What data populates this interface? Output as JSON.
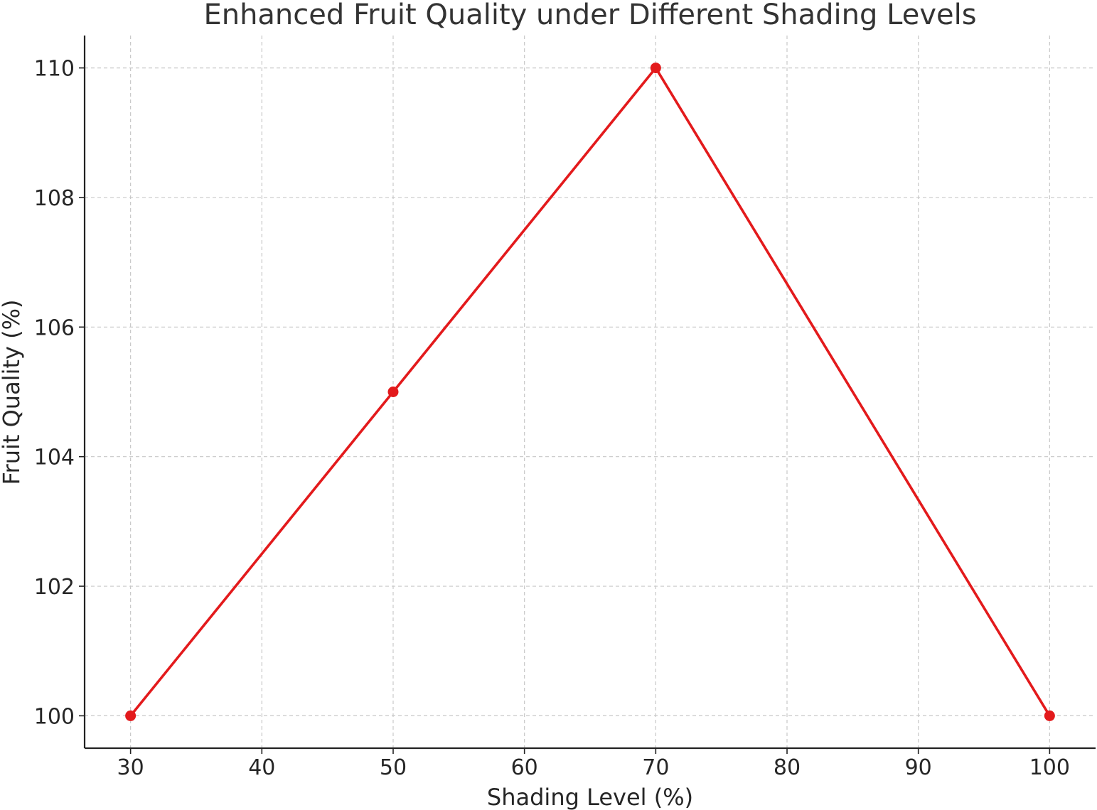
{
  "chart_data": {
    "type": "line",
    "title": "Enhanced Fruit Quality under Different Shading Levels",
    "xlabel": "Shading Level (%)",
    "ylabel": "Fruit Quality (%)",
    "x": [
      30,
      50,
      70,
      100
    ],
    "series": [
      {
        "values": [
          100,
          105,
          110,
          100
        ],
        "color": "#e31a1c",
        "marker": "circle"
      }
    ],
    "xlim": [
      26.5,
      103.5
    ],
    "ylim": [
      99.5,
      110.5
    ],
    "xticks": [
      30,
      40,
      50,
      60,
      70,
      80,
      90,
      100
    ],
    "yticks": [
      100,
      102,
      104,
      106,
      108,
      110
    ],
    "grid": true,
    "legend": "none"
  }
}
